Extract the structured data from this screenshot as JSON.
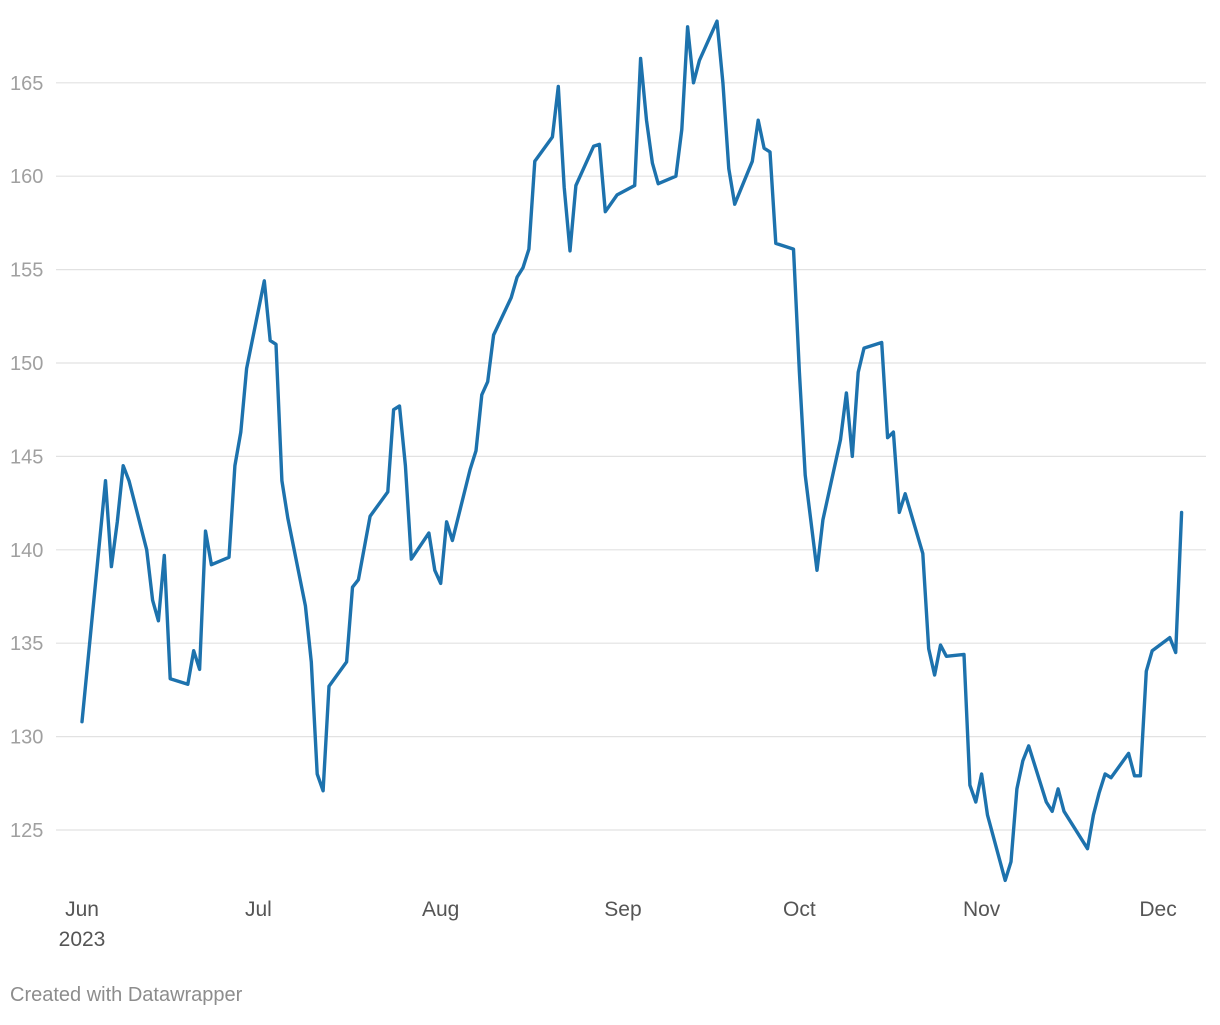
{
  "footer": "Created with Datawrapper",
  "chart_data": {
    "type": "line",
    "title": "",
    "xlabel": "",
    "ylabel": "",
    "ylim": [
      122,
      168.5
    ],
    "xlim": [
      "2023-06-01",
      "2023-12-08"
    ],
    "y_ticks": [
      125,
      130,
      135,
      140,
      145,
      150,
      155,
      160,
      165
    ],
    "x_ticks": [
      {
        "date": "2023-06-01",
        "label": "Jun",
        "sublabel": "2023"
      },
      {
        "date": "2023-07-01",
        "label": "Jul",
        "sublabel": ""
      },
      {
        "date": "2023-08-01",
        "label": "Aug",
        "sublabel": ""
      },
      {
        "date": "2023-09-01",
        "label": "Sep",
        "sublabel": ""
      },
      {
        "date": "2023-10-01",
        "label": "Oct",
        "sublabel": ""
      },
      {
        "date": "2023-11-01",
        "label": "Nov",
        "sublabel": ""
      },
      {
        "date": "2023-12-01",
        "label": "Dec",
        "sublabel": ""
      }
    ],
    "grid": true,
    "colors": {
      "line": "#1d72ad",
      "grid": "#e2e2e2",
      "y_tick_text": "#a0a0a0",
      "x_tick_text": "#555555"
    },
    "series": [
      {
        "points": [
          [
            "2023-06-01",
            130.8
          ],
          [
            "2023-06-05",
            143.7
          ],
          [
            "2023-06-06",
            139.1
          ],
          [
            "2023-06-07",
            141.5
          ],
          [
            "2023-06-08",
            144.5
          ],
          [
            "2023-06-09",
            143.7
          ],
          [
            "2023-06-12",
            140.0
          ],
          [
            "2023-06-13",
            137.3
          ],
          [
            "2023-06-14",
            136.2
          ],
          [
            "2023-06-15",
            139.7
          ],
          [
            "2023-06-16",
            133.1
          ],
          [
            "2023-06-19",
            132.8
          ],
          [
            "2023-06-20",
            134.6
          ],
          [
            "2023-06-21",
            133.6
          ],
          [
            "2023-06-22",
            141.0
          ],
          [
            "2023-06-23",
            139.2
          ],
          [
            "2023-06-26",
            139.6
          ],
          [
            "2023-06-27",
            144.5
          ],
          [
            "2023-06-28",
            146.3
          ],
          [
            "2023-06-29",
            149.7
          ],
          [
            "2023-07-02",
            154.4
          ],
          [
            "2023-07-03",
            151.2
          ],
          [
            "2023-07-04",
            151.0
          ],
          [
            "2023-07-05",
            143.7
          ],
          [
            "2023-07-06",
            141.7
          ],
          [
            "2023-07-09",
            137.0
          ],
          [
            "2023-07-10",
            134.0
          ],
          [
            "2023-07-11",
            128.0
          ],
          [
            "2023-07-12",
            127.1
          ],
          [
            "2023-07-13",
            132.7
          ],
          [
            "2023-07-16",
            134.0
          ],
          [
            "2023-07-17",
            138.0
          ],
          [
            "2023-07-18",
            138.4
          ],
          [
            "2023-07-20",
            141.8
          ],
          [
            "2023-07-23",
            143.1
          ],
          [
            "2023-07-24",
            147.5
          ],
          [
            "2023-07-25",
            147.7
          ],
          [
            "2023-07-26",
            144.5
          ],
          [
            "2023-07-27",
            139.5
          ],
          [
            "2023-07-30",
            140.9
          ],
          [
            "2023-07-31",
            138.9
          ],
          [
            "2023-08-01",
            138.2
          ],
          [
            "2023-08-02",
            141.5
          ],
          [
            "2023-08-03",
            140.5
          ],
          [
            "2023-08-06",
            144.3
          ],
          [
            "2023-08-07",
            145.3
          ],
          [
            "2023-08-08",
            148.3
          ],
          [
            "2023-08-09",
            149.0
          ],
          [
            "2023-08-10",
            151.5
          ],
          [
            "2023-08-13",
            153.5
          ],
          [
            "2023-08-14",
            154.6
          ],
          [
            "2023-08-15",
            155.1
          ],
          [
            "2023-08-16",
            156.1
          ],
          [
            "2023-08-17",
            160.8
          ],
          [
            "2023-08-20",
            162.1
          ],
          [
            "2023-08-21",
            164.8
          ],
          [
            "2023-08-22",
            159.4
          ],
          [
            "2023-08-23",
            156.0
          ],
          [
            "2023-08-24",
            159.5
          ],
          [
            "2023-08-27",
            161.6
          ],
          [
            "2023-08-28",
            161.7
          ],
          [
            "2023-08-29",
            158.1
          ],
          [
            "2023-08-31",
            159.0
          ],
          [
            "2023-09-03",
            159.5
          ],
          [
            "2023-09-04",
            166.3
          ],
          [
            "2023-09-05",
            163.0
          ],
          [
            "2023-09-06",
            160.7
          ],
          [
            "2023-09-07",
            159.6
          ],
          [
            "2023-09-10",
            160.0
          ],
          [
            "2023-09-11",
            162.5
          ],
          [
            "2023-09-12",
            168.0
          ],
          [
            "2023-09-13",
            165.0
          ],
          [
            "2023-09-14",
            166.2
          ],
          [
            "2023-09-17",
            168.3
          ],
          [
            "2023-09-18",
            165.0
          ],
          [
            "2023-09-19",
            160.4
          ],
          [
            "2023-09-20",
            158.5
          ],
          [
            "2023-09-23",
            160.8
          ],
          [
            "2023-09-24",
            163.0
          ],
          [
            "2023-09-25",
            161.5
          ],
          [
            "2023-09-26",
            161.3
          ],
          [
            "2023-09-27",
            156.4
          ],
          [
            "2023-09-30",
            156.1
          ],
          [
            "2023-10-01",
            149.5
          ],
          [
            "2023-10-02",
            144.0
          ],
          [
            "2023-10-04",
            138.9
          ],
          [
            "2023-10-05",
            141.6
          ],
          [
            "2023-10-08",
            145.9
          ],
          [
            "2023-10-09",
            148.4
          ],
          [
            "2023-10-10",
            145.0
          ],
          [
            "2023-10-11",
            149.5
          ],
          [
            "2023-10-12",
            150.8
          ],
          [
            "2023-10-15",
            151.1
          ],
          [
            "2023-10-16",
            146.0
          ],
          [
            "2023-10-17",
            146.3
          ],
          [
            "2023-10-18",
            142.0
          ],
          [
            "2023-10-19",
            143.0
          ],
          [
            "2023-10-22",
            139.8
          ],
          [
            "2023-10-23",
            134.7
          ],
          [
            "2023-10-24",
            133.3
          ],
          [
            "2023-10-25",
            134.9
          ],
          [
            "2023-10-26",
            134.3
          ],
          [
            "2023-10-29",
            134.4
          ],
          [
            "2023-10-30",
            127.4
          ],
          [
            "2023-10-31",
            126.5
          ],
          [
            "2023-11-01",
            128.0
          ],
          [
            "2023-11-02",
            125.8
          ],
          [
            "2023-11-05",
            122.3
          ],
          [
            "2023-11-06",
            123.3
          ],
          [
            "2023-11-07",
            127.2
          ],
          [
            "2023-11-08",
            128.7
          ],
          [
            "2023-11-09",
            129.5
          ],
          [
            "2023-11-12",
            126.5
          ],
          [
            "2023-11-13",
            126.0
          ],
          [
            "2023-11-14",
            127.2
          ],
          [
            "2023-11-15",
            126.0
          ],
          [
            "2023-11-19",
            124.0
          ],
          [
            "2023-11-20",
            125.8
          ],
          [
            "2023-11-21",
            127.0
          ],
          [
            "2023-11-22",
            128.0
          ],
          [
            "2023-11-23",
            127.8
          ],
          [
            "2023-11-26",
            129.1
          ],
          [
            "2023-11-27",
            127.9
          ],
          [
            "2023-11-28",
            127.9
          ],
          [
            "2023-11-29",
            133.5
          ],
          [
            "2023-11-30",
            134.6
          ],
          [
            "2023-12-03",
            135.3
          ],
          [
            "2023-12-04",
            134.5
          ],
          [
            "2023-12-05",
            142.0
          ]
        ]
      }
    ]
  }
}
